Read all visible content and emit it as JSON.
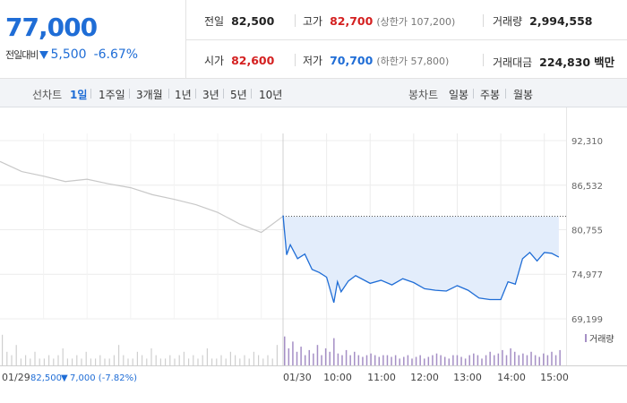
{
  "summary": {
    "price": "77,000",
    "change_label": "전일대비",
    "change_value": "5,500",
    "change_pct": "-6.67%",
    "prev_close_label": "전일",
    "prev_close": "82,500",
    "high_label": "고가",
    "high": "82,700",
    "upper_limit": "(상한가 107,200)",
    "volume_label": "거래량",
    "volume": "2,994,558",
    "open_label": "시가",
    "open": "82,600",
    "low_label": "저가",
    "low": "70,700",
    "lower_limit": "(하한가 57,800)",
    "amount_label": "거래대금",
    "amount": "224,830",
    "amount_unit": "백만"
  },
  "period_bar": {
    "line_label": "선차트",
    "periods": [
      "1일",
      "1주일",
      "3개월",
      "1년",
      "3년",
      "5년",
      "10년"
    ],
    "active_period": "1일",
    "candle_label": "봉차트",
    "candles": [
      "일봉",
      "주봉",
      "월봉"
    ]
  },
  "colors": {
    "up": "#d42020",
    "down": "#1f6dd6",
    "prev_line": "#c8c8c8",
    "today_fill": "#e3edfb",
    "volume_today": "#a58fc5",
    "volume_prev": "#cfcfcf"
  },
  "chart_data": {
    "type": "line",
    "y_ticks": [
      "92,310",
      "86,532",
      "80,755",
      "74,977",
      "69,199"
    ],
    "y_tick_values": [
      92310,
      86532,
      80755,
      74977,
      69199
    ],
    "ylim": [
      69199,
      92310
    ],
    "reference_price": 82500,
    "x_labels": [
      "01/29",
      "01/30",
      "10:00",
      "11:00",
      "12:00",
      "13:00",
      "14:00",
      "15:00"
    ],
    "previous_day": {
      "date": "01/29",
      "close": "82,500",
      "change": "7,000",
      "change_pct": "(-7.82%)",
      "times": [
        "09:00",
        "09:30",
        "10:00",
        "10:30",
        "11:00",
        "11:30",
        "12:00",
        "12:30",
        "13:00",
        "13:30",
        "14:00",
        "14:30",
        "15:00",
        "15:30"
      ],
      "values": [
        89600,
        88300,
        87700,
        87000,
        87300,
        86700,
        86200,
        85300,
        84700,
        84000,
        83000,
        81500,
        80400,
        82500
      ]
    },
    "today": {
      "date": "01/30",
      "times": [
        "09:00",
        "09:05",
        "09:10",
        "09:20",
        "09:30",
        "09:40",
        "09:50",
        "10:00",
        "10:10",
        "10:15",
        "10:20",
        "10:30",
        "10:40",
        "11:00",
        "11:15",
        "11:30",
        "11:45",
        "12:00",
        "12:15",
        "12:30",
        "12:45",
        "13:00",
        "13:15",
        "13:30",
        "13:45",
        "14:00",
        "14:10",
        "14:20",
        "14:30",
        "14:40",
        "14:50",
        "15:00",
        "15:10",
        "15:20"
      ],
      "values": [
        82600,
        77500,
        78800,
        77000,
        77600,
        75600,
        75200,
        74600,
        71300,
        74000,
        72700,
        74100,
        74800,
        73800,
        74200,
        73600,
        74400,
        73900,
        73100,
        72900,
        72800,
        73500,
        72900,
        71900,
        71700,
        71700,
        74000,
        73700,
        77000,
        77800,
        76700,
        77800,
        77700,
        77200
      ]
    },
    "volume_label": "거래량",
    "volume": {
      "unit": "relative",
      "previous_day": [
        0.9,
        0.4,
        0.3,
        0.6,
        0.2,
        0.3,
        0.2,
        0.4,
        0.2,
        0.2,
        0.3,
        0.2,
        0.3,
        0.5,
        0.2,
        0.2,
        0.3,
        0.2,
        0.4,
        0.2,
        0.2,
        0.3,
        0.2,
        0.2,
        0.3,
        0.6,
        0.3,
        0.2,
        0.2,
        0.4,
        0.3,
        0.2,
        0.5,
        0.3,
        0.2,
        0.2,
        0.3,
        0.2,
        0.3,
        0.4,
        0.2,
        0.3,
        0.2,
        0.3,
        0.5,
        0.2,
        0.2,
        0.3,
        0.2,
        0.4,
        0.3,
        0.2,
        0.3,
        0.2,
        0.4,
        0.3,
        0.2,
        0.3,
        0.2,
        0.6
      ],
      "today": [
        0.85,
        0.5,
        0.7,
        0.4,
        0.55,
        0.3,
        0.45,
        0.35,
        0.6,
        0.3,
        0.5,
        0.4,
        0.8,
        0.35,
        0.3,
        0.45,
        0.3,
        0.4,
        0.3,
        0.25,
        0.3,
        0.35,
        0.3,
        0.25,
        0.3,
        0.3,
        0.25,
        0.3,
        0.2,
        0.25,
        0.3,
        0.2,
        0.25,
        0.3,
        0.2,
        0.25,
        0.3,
        0.35,
        0.3,
        0.25,
        0.2,
        0.3,
        0.3,
        0.25,
        0.2,
        0.3,
        0.35,
        0.3,
        0.2,
        0.3,
        0.4,
        0.3,
        0.35,
        0.45,
        0.3,
        0.5,
        0.4,
        0.3,
        0.35,
        0.3,
        0.4,
        0.3,
        0.25,
        0.35,
        0.3,
        0.4,
        0.3,
        0.45
      ]
    }
  }
}
